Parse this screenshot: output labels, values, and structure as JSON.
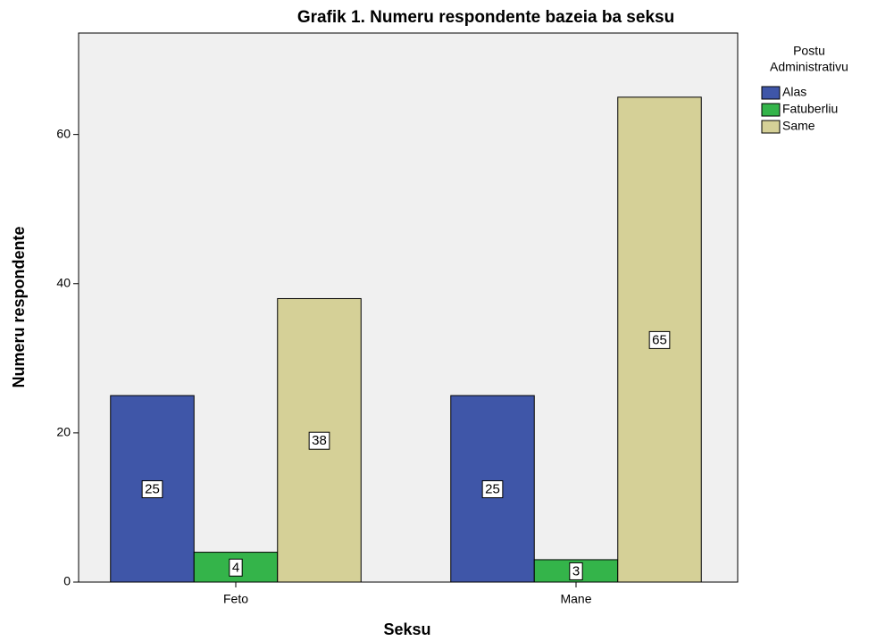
{
  "chart_data": {
    "type": "bar",
    "title": "Grafik 1. Numeru respondente bazeia ba seksu",
    "x_label": "Seksu",
    "y_label": "Numeru respondente",
    "legend_title": [
      "Postu",
      "Administrativu"
    ],
    "legend_position": "right",
    "categories": [
      "Feto",
      "Mane"
    ],
    "series": [
      {
        "name": "Alas",
        "color": "#3f56a8",
        "values": [
          25,
          25
        ]
      },
      {
        "name": "Fatuberliu",
        "color": "#34b44a",
        "values": [
          4,
          3
        ]
      },
      {
        "name": "Same",
        "color": "#d5d097",
        "values": [
          38,
          65
        ]
      }
    ],
    "ylim": [
      0,
      73.6
    ],
    "yticks": [
      0,
      20,
      40,
      60
    ],
    "grid": false
  }
}
